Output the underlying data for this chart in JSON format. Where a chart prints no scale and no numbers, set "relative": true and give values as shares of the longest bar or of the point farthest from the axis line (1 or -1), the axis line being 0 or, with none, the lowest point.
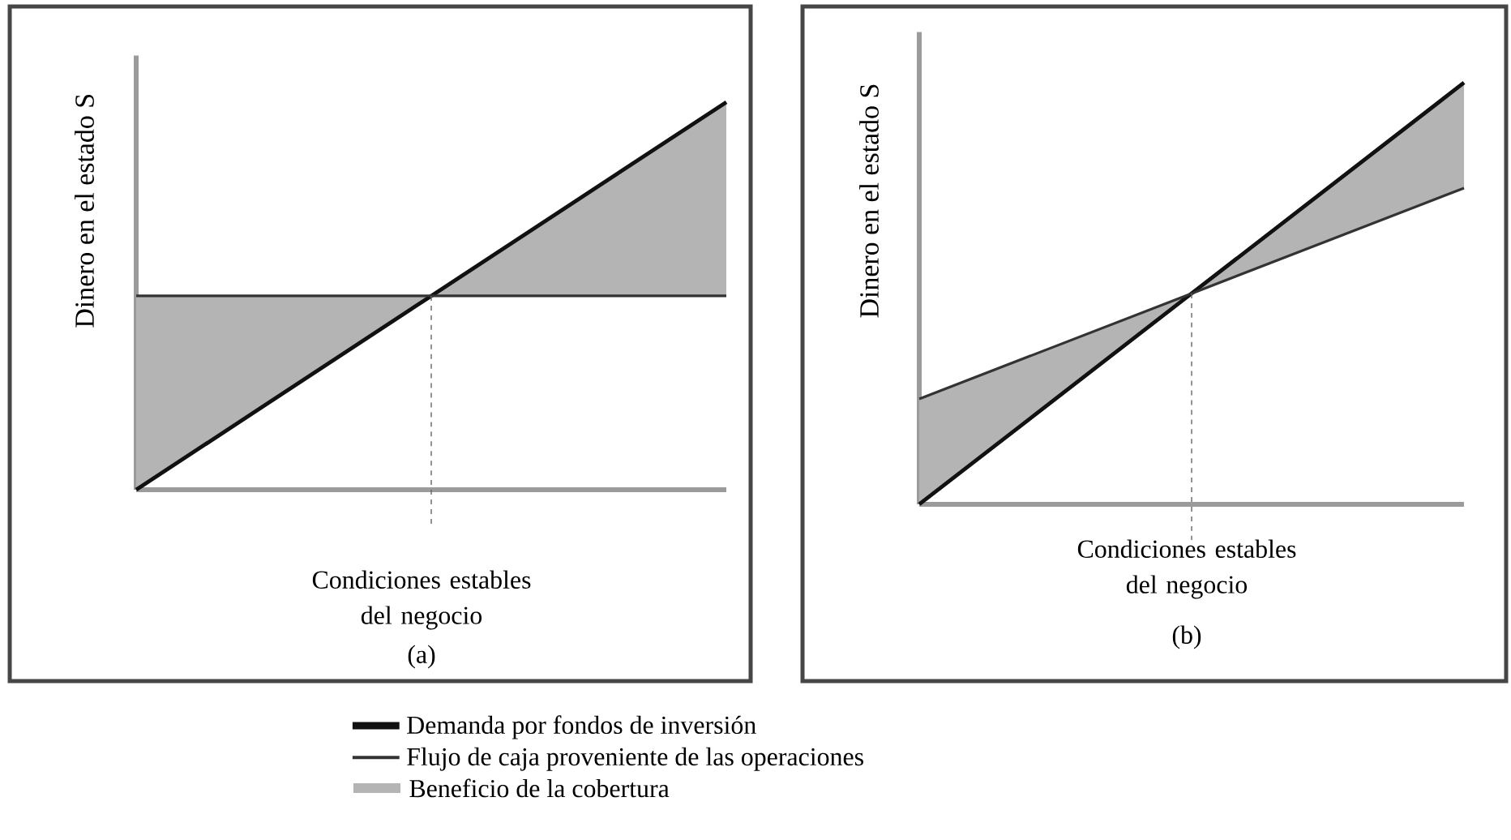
{
  "chart_data": [
    {
      "type": "line",
      "relative": true,
      "ylabel": "Dinero en el estado S",
      "xlabel": "Condiciones estables del negocio",
      "title": "(a)",
      "categories": [
        null,
        null,
        null
      ],
      "tick_labels": false,
      "legend": "bottom",
      "annotations": [
        "Beneficio de la cobertura"
      ],
      "series": [
        {
          "name": "Demanda por fondos de inversión",
          "color": "#111111",
          "values": [
            0,
            0.5,
            1
          ]
        },
        {
          "name": "Flujo de caja proveniente de las operaciones",
          "color": "#333333",
          "values": [
            0.5,
            0.5,
            0.5
          ],
          "lower": [
            0,
            0.5,
            0.5
          ],
          "upper": [
            0.5,
            0.5,
            1
          ]
        }
      ]
    },
    {
      "type": "line",
      "relative": true,
      "ylabel": "Dinero en el estado S",
      "xlabel": "Condiciones estables del negocio",
      "title": "(b)",
      "categories": [
        null,
        null,
        null
      ],
      "tick_labels": false,
      "series": [
        {
          "color": "#111111",
          "values": [
            0,
            0.5,
            1
          ]
        },
        {
          "color": "#333333",
          "values": [
            0.25,
            0.5,
            0.75
          ],
          "lower": [
            0,
            0.5,
            0.75
          ],
          "upper": [
            0.25,
            0.5,
            1
          ]
        }
      ]
    }
  ]
}
